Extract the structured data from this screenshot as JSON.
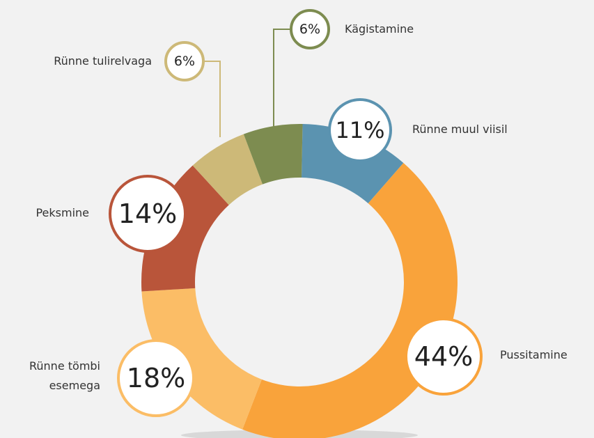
{
  "chart_data": {
    "type": "donut",
    "categories": [
      "Rünne muul viisil",
      "Pussitamine",
      "Rünne tömbi esemega",
      "Peksmine",
      "Rünne tulirelvaga",
      "Kägistamine"
    ],
    "values": [
      11,
      44,
      18,
      14,
      6,
      6
    ],
    "value_labels": [
      "11%",
      "44%",
      "18%",
      "14%",
      "6%",
      "6%"
    ],
    "colors": [
      "#5b93b0",
      "#f9a33b",
      "#fbbd66",
      "#b9553a",
      "#cdb978",
      "#7d8c50"
    ]
  }
}
